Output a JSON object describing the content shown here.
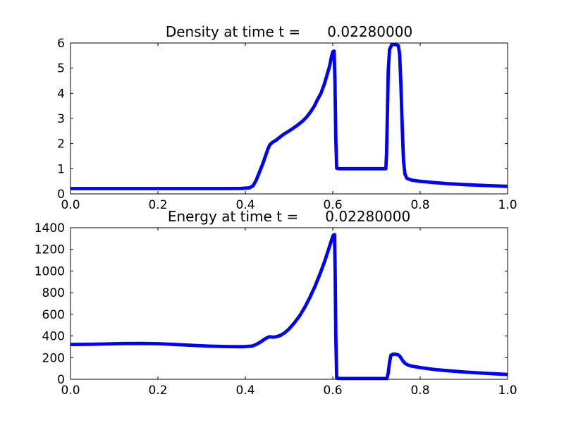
{
  "figure": {
    "background": "#ffffff",
    "axis_color": "#000000",
    "line_color": "#0000ff",
    "line_width": 4.8
  },
  "chart_data": [
    {
      "id": "density",
      "type": "line",
      "title": "Density at time t =      0.02280000",
      "xlabel": "",
      "ylabel": "",
      "grid": false,
      "legend": null,
      "xlim": [
        0.0,
        1.0
      ],
      "ylim": [
        0,
        6
      ],
      "xticks": {
        "values": [
          0.0,
          0.2,
          0.4,
          0.6,
          0.8,
          1.0
        ],
        "labels": [
          "0.0",
          "0.2",
          "0.4",
          "0.6",
          "0.8",
          "1.0"
        ]
      },
      "yticks": {
        "values": [
          0,
          1,
          2,
          3,
          4,
          5,
          6
        ],
        "labels": [
          "0",
          "1",
          "2",
          "3",
          "4",
          "5",
          "6"
        ]
      },
      "series": [
        {
          "name": "density",
          "color": "#0000ff",
          "x": [
            0.0,
            0.05,
            0.1,
            0.15,
            0.2,
            0.25,
            0.3,
            0.35,
            0.39,
            0.41,
            0.418,
            0.425,
            0.432,
            0.44,
            0.447,
            0.452,
            0.456,
            0.462,
            0.47,
            0.48,
            0.49,
            0.5,
            0.51,
            0.52,
            0.53,
            0.54,
            0.55,
            0.558,
            0.565,
            0.573,
            0.581,
            0.588,
            0.593,
            0.597,
            0.6,
            0.603,
            0.605,
            0.607,
            0.609,
            0.615,
            0.64,
            0.67,
            0.7,
            0.718,
            0.7215,
            0.723,
            0.725,
            0.727,
            0.73,
            0.735,
            0.74,
            0.745,
            0.75,
            0.753,
            0.756,
            0.759,
            0.762,
            0.765,
            0.769,
            0.772,
            0.78,
            0.8,
            0.83,
            0.86,
            0.9,
            0.94,
            0.97,
            1.0
          ],
          "y": [
            0.21,
            0.21,
            0.21,
            0.21,
            0.21,
            0.21,
            0.21,
            0.21,
            0.215,
            0.24,
            0.33,
            0.55,
            0.85,
            1.2,
            1.55,
            1.8,
            1.95,
            2.05,
            2.13,
            2.27,
            2.4,
            2.5,
            2.62,
            2.74,
            2.88,
            3.05,
            3.28,
            3.5,
            3.75,
            4.0,
            4.38,
            4.8,
            5.1,
            5.45,
            5.65,
            5.68,
            4.5,
            2.2,
            1.02,
            1.0,
            1.0,
            1.0,
            1.0,
            1.0,
            1.0,
            1.6,
            3.2,
            4.9,
            5.75,
            5.93,
            5.95,
            5.93,
            5.9,
            5.55,
            4.3,
            2.6,
            1.3,
            0.8,
            0.63,
            0.6,
            0.55,
            0.5,
            0.45,
            0.41,
            0.37,
            0.34,
            0.32,
            0.3
          ]
        }
      ]
    },
    {
      "id": "energy",
      "type": "line",
      "title": "Energy at time t =      0.02280000",
      "xlabel": "",
      "ylabel": "",
      "grid": false,
      "legend": null,
      "xlim": [
        0.0,
        1.0
      ],
      "ylim": [
        0,
        1400
      ],
      "xticks": {
        "values": [
          0.0,
          0.2,
          0.4,
          0.6,
          0.8,
          1.0
        ],
        "labels": [
          "0.0",
          "0.2",
          "0.4",
          "0.6",
          "0.8",
          "1.0"
        ]
      },
      "yticks": {
        "values": [
          0,
          200,
          400,
          600,
          800,
          1000,
          1200,
          1400
        ],
        "labels": [
          "0",
          "200",
          "400",
          "600",
          "800",
          "1000",
          "1200",
          "1400"
        ]
      },
      "series": [
        {
          "name": "energy",
          "color": "#0000ff",
          "x": [
            0.0,
            0.04,
            0.08,
            0.12,
            0.16,
            0.2,
            0.24,
            0.28,
            0.32,
            0.36,
            0.395,
            0.415,
            0.425,
            0.435,
            0.443,
            0.45,
            0.456,
            0.463,
            0.47,
            0.48,
            0.49,
            0.5,
            0.512,
            0.524,
            0.536,
            0.548,
            0.56,
            0.572,
            0.582,
            0.59,
            0.596,
            0.601,
            0.604,
            0.6055,
            0.607,
            0.609,
            0.62,
            0.65,
            0.68,
            0.71,
            0.724,
            0.727,
            0.73,
            0.733,
            0.738,
            0.744,
            0.75,
            0.754,
            0.758,
            0.762,
            0.766,
            0.772,
            0.78,
            0.8,
            0.83,
            0.86,
            0.9,
            0.94,
            0.97,
            1.0
          ],
          "y": [
            322,
            323,
            326,
            330,
            331,
            329,
            322,
            313,
            306,
            302,
            301,
            307,
            322,
            345,
            368,
            385,
            393,
            389,
            392,
            405,
            430,
            465,
            520,
            585,
            665,
            760,
            865,
            985,
            1095,
            1195,
            1270,
            1330,
            1336,
            1000,
            400,
            10,
            7,
            7,
            7,
            7,
            8,
            60,
            160,
            222,
            232,
            231,
            225,
            210,
            185,
            162,
            145,
            132,
            122,
            108,
            92,
            80,
            68,
            58,
            51,
            45
          ]
        }
      ]
    }
  ]
}
